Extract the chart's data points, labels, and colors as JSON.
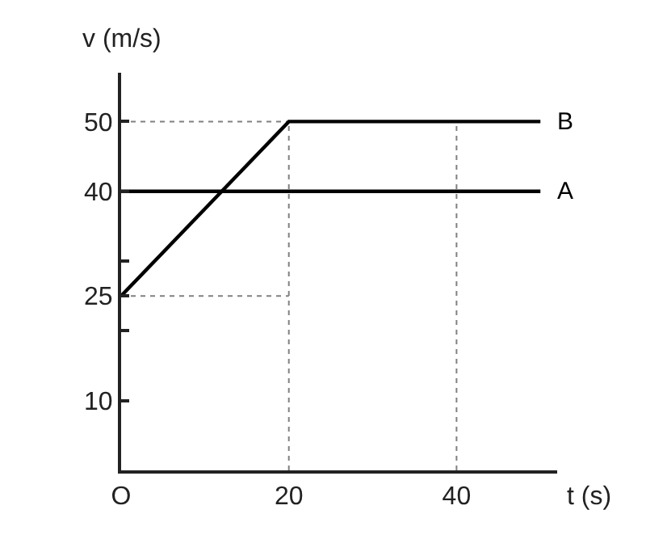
{
  "chart_data": {
    "type": "line",
    "xlabel": "t (s)",
    "ylabel": "v (m/s)",
    "series": [
      {
        "name": "A",
        "color": "#000000",
        "x": [
          0,
          50
        ],
        "values": [
          40,
          40
        ]
      },
      {
        "name": "B",
        "color": "#000000",
        "x": [
          0,
          20,
          50
        ],
        "values": [
          25,
          50,
          50
        ]
      }
    ],
    "xlim": [
      0,
      52
    ],
    "ylim": [
      0,
      57
    ],
    "xticks": [
      {
        "value": 0,
        "label": "O"
      },
      20,
      40
    ],
    "yticks": [
      10,
      {
        "value": 20,
        "label": null
      },
      25,
      {
        "value": 30,
        "label": null
      },
      40,
      50
    ],
    "ref_lines": [
      {
        "axis": "x",
        "value": 20,
        "label": null,
        "color": "#808080",
        "line_style": "dotted"
      },
      {
        "axis": "x",
        "value": 40,
        "label": null,
        "color": "#808080",
        "line_style": "dotted"
      },
      {
        "axis": "y",
        "value": 50,
        "label": null,
        "color": "#808080",
        "line_style": "dotted"
      },
      {
        "axis": "y",
        "value": 25,
        "label": null,
        "color": "#808080",
        "line_style": "dotted"
      }
    ],
    "grid": false,
    "legend": false,
    "marker": "none",
    "line_style": "solid"
  }
}
